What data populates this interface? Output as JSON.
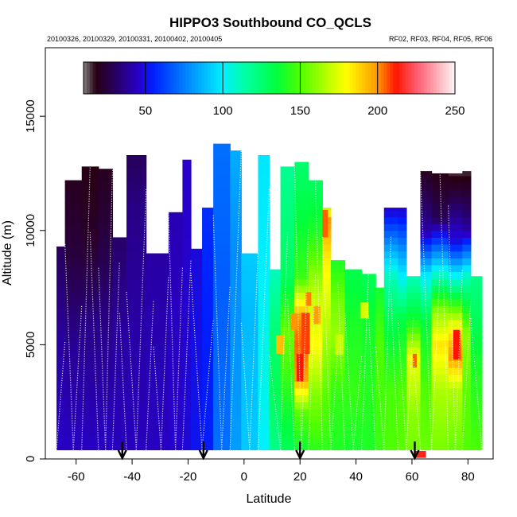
{
  "chart_data": {
    "type": "heatmap",
    "title": "HIPPO3 Southbound CO_QCLS",
    "subtitle_left": "20100326, 20100329, 20100331, 20100402, 20100405",
    "subtitle_right": "RF02, RF03, RF04, RF05, RF06",
    "xlabel": "Latitude",
    "ylabel": "Altitude (m)",
    "xlim": [
      -71,
      89
    ],
    "ylim": [
      0,
      18000
    ],
    "x_ticks": [
      -60,
      -40,
      -20,
      0,
      20,
      40,
      60,
      80
    ],
    "y_ticks": [
      0,
      5000,
      10000,
      15000
    ],
    "colorbar": {
      "range": [
        10,
        250
      ],
      "ticks": [
        50,
        100,
        150,
        200,
        250
      ]
    },
    "arrows_latitude": [
      -43.5,
      -14.5,
      20,
      61
    ],
    "grid": false,
    "columns": [
      {
        "lat0": -67,
        "lat1": -64,
        "top": 9300,
        "profile": [
          [
            0,
            45
          ],
          [
            5000,
            40
          ],
          [
            9300,
            30
          ]
        ]
      },
      {
        "lat0": -64,
        "lat1": -58,
        "top": 12200,
        "profile": [
          [
            0,
            45
          ],
          [
            5000,
            38
          ],
          [
            9000,
            25
          ],
          [
            12200,
            20
          ]
        ]
      },
      {
        "lat0": -58,
        "lat1": -52,
        "top": 12800,
        "profile": [
          [
            0,
            45
          ],
          [
            6000,
            36
          ],
          [
            9500,
            22
          ],
          [
            12800,
            18
          ]
        ]
      },
      {
        "lat0": -52,
        "lat1": -47,
        "top": 12700,
        "profile": [
          [
            0,
            45
          ],
          [
            6000,
            36
          ],
          [
            10000,
            25
          ],
          [
            12700,
            20
          ]
        ]
      },
      {
        "lat0": -47,
        "lat1": -42,
        "top": 9700,
        "profile": [
          [
            0,
            44
          ],
          [
            5000,
            40
          ],
          [
            9700,
            32
          ]
        ]
      },
      {
        "lat0": -42,
        "lat1": -35,
        "top": 13300,
        "profile": [
          [
            0,
            44
          ],
          [
            6000,
            40
          ],
          [
            11000,
            36
          ],
          [
            13300,
            30
          ]
        ]
      },
      {
        "lat0": -35,
        "lat1": -27,
        "top": 9000,
        "profile": [
          [
            0,
            44
          ],
          [
            5000,
            42
          ],
          [
            9000,
            40
          ]
        ]
      },
      {
        "lat0": -27,
        "lat1": -22,
        "top": 10800,
        "profile": [
          [
            0,
            46
          ],
          [
            6000,
            44
          ],
          [
            10800,
            42
          ]
        ]
      },
      {
        "lat0": -22,
        "lat1": -19,
        "top": 13100,
        "profile": [
          [
            0,
            48
          ],
          [
            6000,
            46
          ],
          [
            13100,
            45
          ]
        ]
      },
      {
        "lat0": -19,
        "lat1": -15,
        "top": 9200,
        "profile": [
          [
            0,
            52
          ],
          [
            5000,
            50
          ],
          [
            9200,
            48
          ]
        ]
      },
      {
        "lat0": -15,
        "lat1": -11,
        "top": 11000,
        "profile": [
          [
            0,
            54
          ],
          [
            6000,
            55
          ],
          [
            11000,
            58
          ]
        ]
      },
      {
        "lat0": -11,
        "lat1": -5,
        "top": 13800,
        "profile": [
          [
            0,
            72
          ],
          [
            4000,
            70
          ],
          [
            8000,
            68
          ],
          [
            13800,
            72
          ]
        ]
      },
      {
        "lat0": -5,
        "lat1": -1,
        "top": 13500,
        "profile": [
          [
            0,
            82
          ],
          [
            4000,
            80
          ],
          [
            9000,
            78
          ],
          [
            13500,
            85
          ]
        ]
      },
      {
        "lat0": -1,
        "lat1": 5,
        "top": 9000,
        "profile": [
          [
            0,
            92
          ],
          [
            3000,
            90
          ],
          [
            6000,
            88
          ],
          [
            9000,
            92
          ]
        ]
      },
      {
        "lat0": 5,
        "lat1": 9,
        "top": 13300,
        "profile": [
          [
            0,
            100
          ],
          [
            4000,
            104
          ],
          [
            8000,
            100
          ],
          [
            13300,
            98
          ]
        ]
      },
      {
        "lat0": 9,
        "lat1": 13,
        "top": 8300,
        "profile": [
          [
            0,
            118
          ],
          [
            3000,
            130
          ],
          [
            6000,
            122
          ],
          [
            8300,
            110
          ]
        ]
      },
      {
        "lat0": 13,
        "lat1": 18,
        "top": 12800,
        "profile": [
          [
            0,
            128
          ],
          [
            3000,
            142
          ],
          [
            5500,
            155
          ],
          [
            8000,
            128
          ],
          [
            12800,
            118
          ]
        ]
      },
      {
        "lat0": 18,
        "lat1": 23,
        "top": 13000,
        "profile": [
          [
            0,
            135
          ],
          [
            2000,
            150
          ],
          [
            3500,
            198
          ],
          [
            5000,
            205
          ],
          [
            6200,
            200
          ],
          [
            8000,
            145
          ],
          [
            13000,
            125
          ]
        ]
      },
      {
        "lat0": 23,
        "lat1": 28,
        "top": 12200,
        "profile": [
          [
            0,
            140
          ],
          [
            3000,
            160
          ],
          [
            5000,
            180
          ],
          [
            7000,
            170
          ],
          [
            10000,
            140
          ],
          [
            12200,
            128
          ]
        ]
      },
      {
        "lat0": 28,
        "lat1": 31,
        "top": 11000,
        "profile": [
          [
            0,
            142
          ],
          [
            3000,
            152
          ],
          [
            6000,
            168
          ],
          [
            9000,
            185
          ],
          [
            10500,
            200
          ],
          [
            11000,
            165
          ]
        ]
      },
      {
        "lat0": 31,
        "lat1": 36,
        "top": 8700,
        "profile": [
          [
            0,
            140
          ],
          [
            3000,
            145
          ],
          [
            5500,
            162
          ],
          [
            7000,
            155
          ],
          [
            8700,
            140
          ]
        ]
      },
      {
        "lat0": 36,
        "lat1": 42,
        "top": 8300,
        "profile": [
          [
            0,
            138
          ],
          [
            3000,
            145
          ],
          [
            6000,
            140
          ],
          [
            8300,
            132
          ]
        ]
      },
      {
        "lat0": 42,
        "lat1": 47,
        "top": 8100,
        "profile": [
          [
            0,
            140
          ],
          [
            3000,
            142
          ],
          [
            6000,
            138
          ],
          [
            8100,
            130
          ]
        ]
      },
      {
        "lat0": 47,
        "lat1": 50,
        "top": 7500,
        "profile": [
          [
            0,
            145
          ],
          [
            3000,
            148
          ],
          [
            5000,
            150
          ],
          [
            7500,
            138
          ]
        ]
      },
      {
        "lat0": 50,
        "lat1": 55,
        "top": 11000,
        "profile": [
          [
            0,
            150
          ],
          [
            3000,
            148
          ],
          [
            6000,
            132
          ],
          [
            8000,
            110
          ],
          [
            11000,
            45
          ]
        ]
      },
      {
        "lat0": 55,
        "lat1": 58,
        "top": 11000,
        "profile": [
          [
            0,
            152
          ],
          [
            3000,
            150
          ],
          [
            6000,
            135
          ],
          [
            8000,
            100
          ],
          [
            11000,
            45
          ]
        ]
      },
      {
        "lat0": 58,
        "lat1": 63,
        "top": 8000,
        "profile": [
          [
            0,
            155
          ],
          [
            2000,
            160
          ],
          [
            4500,
            178
          ],
          [
            6000,
            140
          ],
          [
            8000,
            110
          ]
        ]
      },
      {
        "lat0": 63,
        "lat1": 67,
        "top": 12600,
        "profile": [
          [
            0,
            155
          ],
          [
            3000,
            150
          ],
          [
            6000,
            135
          ],
          [
            8000,
            100
          ],
          [
            10000,
            40
          ],
          [
            12600,
            20
          ]
        ]
      },
      {
        "lat0": 67,
        "lat1": 73,
        "top": 12500,
        "profile": [
          [
            0,
            155
          ],
          [
            3000,
            165
          ],
          [
            5000,
            185
          ],
          [
            6500,
            160
          ],
          [
            8500,
            95
          ],
          [
            10500,
            30
          ],
          [
            12500,
            18
          ]
        ]
      },
      {
        "lat0": 73,
        "lat1": 78,
        "top": 12500,
        "profile": [
          [
            0,
            152
          ],
          [
            3000,
            165
          ],
          [
            4500,
            200
          ],
          [
            5800,
            180
          ],
          [
            7500,
            120
          ],
          [
            9500,
            50
          ],
          [
            12500,
            15
          ]
        ]
      },
      {
        "lat0": 78,
        "lat1": 81,
        "top": 12600,
        "profile": [
          [
            0,
            150
          ],
          [
            3000,
            152
          ],
          [
            5500,
            160
          ],
          [
            8000,
            110
          ],
          [
            10000,
            40
          ],
          [
            12600,
            15
          ]
        ]
      },
      {
        "lat0": 81,
        "lat1": 85,
        "top": 8000,
        "profile": [
          [
            0,
            150
          ],
          [
            4000,
            140
          ],
          [
            8000,
            120
          ]
        ]
      }
    ],
    "hotspots": [
      {
        "lat": 22,
        "alt": 5500,
        "w": 3,
        "h": 1800,
        "value": 208
      },
      {
        "lat": 20,
        "alt": 4000,
        "w": 2.5,
        "h": 1200,
        "value": 212
      },
      {
        "lat": 29,
        "alt": 10300,
        "w": 2,
        "h": 1200,
        "value": 205
      },
      {
        "lat": 18,
        "alt": 6000,
        "w": 2.5,
        "h": 700,
        "value": 200
      },
      {
        "lat": 23,
        "alt": 7000,
        "w": 2,
        "h": 600,
        "value": 202
      },
      {
        "lat": 26,
        "alt": 6300,
        "w": 2.5,
        "h": 800,
        "value": 198
      },
      {
        "lat": 13,
        "alt": 5000,
        "w": 3,
        "h": 800,
        "value": 192
      },
      {
        "lat": 76,
        "alt": 5000,
        "w": 2.5,
        "h": 1300,
        "value": 212
      },
      {
        "lat": 61,
        "alt": 4300,
        "w": 1.5,
        "h": 600,
        "value": 205
      },
      {
        "lat": 63,
        "alt": 200,
        "w": 4,
        "h": 300,
        "value": 215
      },
      {
        "lat": 43,
        "alt": 6500,
        "w": 3,
        "h": 700,
        "value": 172
      },
      {
        "lat": 34,
        "alt": 5000,
        "w": 3,
        "h": 900,
        "value": 170
      }
    ]
  }
}
